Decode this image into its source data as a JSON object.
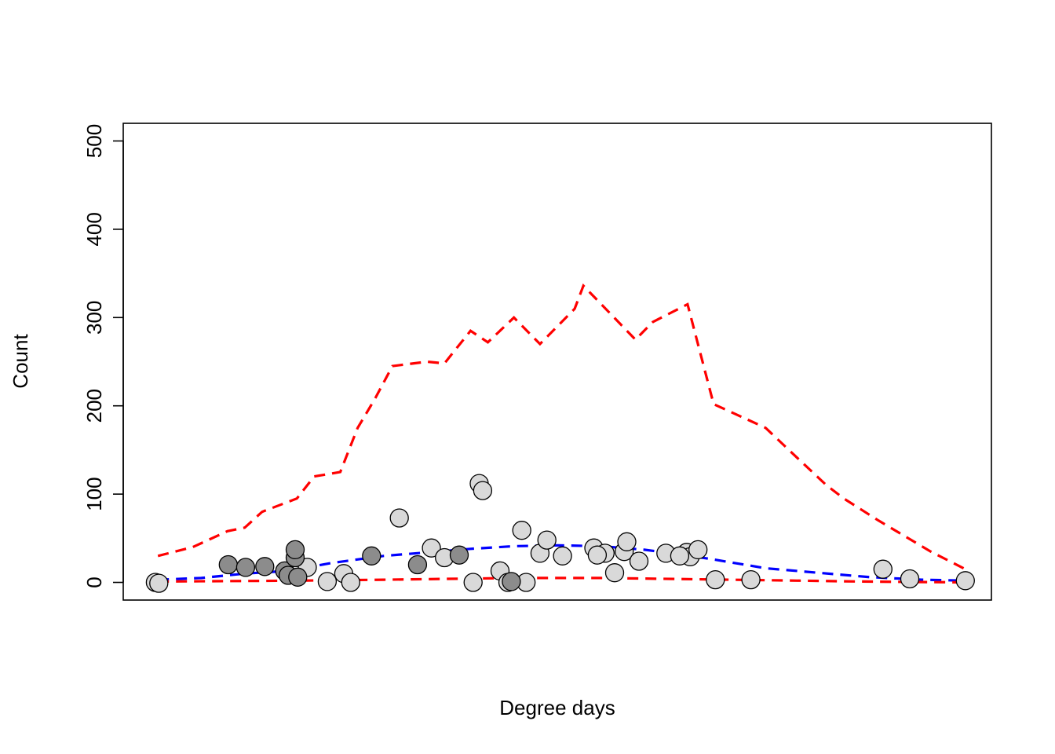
{
  "chart_data": {
    "type": "scatter",
    "title": "",
    "xlabel": "Degree days",
    "ylabel": "Count",
    "xlim": [
      0,
      1
    ],
    "ylim": [
      -20,
      520
    ],
    "x_ticks_shown": false,
    "y_ticks": [
      0,
      100,
      200,
      300,
      400,
      500
    ],
    "grid": false,
    "legend": "none",
    "colors": {
      "point_light": "#d9d9d9",
      "point_dark": "#8c8c8c",
      "point_border": "#000000",
      "upper_band": "#ff0000",
      "lower_band": "#ff0000",
      "mean_line": "#0000ff"
    },
    "series": [
      {
        "kind": "points",
        "fill": "light",
        "x": [
          0.037,
          0.041,
          0.212,
          0.235,
          0.254,
          0.262,
          0.318,
          0.355,
          0.37,
          0.403,
          0.459,
          0.464,
          0.41,
          0.414,
          0.434,
          0.443,
          0.48,
          0.488,
          0.506,
          0.542,
          0.555,
          0.577,
          0.566,
          0.546,
          0.594,
          0.649,
          0.653,
          0.682,
          0.58,
          0.625,
          0.641,
          0.662,
          0.723,
          0.875,
          0.906,
          0.97
        ],
        "y": [
          0,
          -1,
          17,
          1,
          10,
          0,
          73,
          39,
          28,
          0,
          59,
          0,
          112,
          104,
          13,
          0,
          33,
          48,
          30,
          39,
          33,
          35,
          11,
          31,
          24,
          34,
          29,
          3,
          46,
          33,
          30,
          37,
          3,
          15,
          4,
          2
        ]
      },
      {
        "kind": "points",
        "fill": "dark",
        "x": [
          0.121,
          0.141,
          0.163,
          0.186,
          0.19,
          0.198,
          0.198,
          0.201,
          0.286,
          0.339,
          0.387,
          0.447
        ],
        "y": [
          20,
          17,
          18,
          13,
          8,
          28,
          37,
          6,
          30,
          20,
          31,
          1
        ]
      },
      {
        "kind": "line",
        "name": "",
        "style": "upper",
        "x": [
          0.04,
          0.08,
          0.12,
          0.14,
          0.16,
          0.2,
          0.22,
          0.25,
          0.27,
          0.29,
          0.31,
          0.35,
          0.37,
          0.4,
          0.42,
          0.45,
          0.48,
          0.52,
          0.53,
          0.59,
          0.61,
          0.65,
          0.68,
          0.74,
          0.77,
          0.81,
          0.83,
          0.87,
          0.93,
          0.97
        ],
        "y": [
          30,
          40,
          58,
          62,
          80,
          95,
          120,
          125,
          175,
          208,
          245,
          250,
          248,
          285,
          272,
          300,
          270,
          310,
          336,
          275,
          295,
          315,
          202,
          175,
          147,
          110,
          95,
          70,
          35,
          15
        ]
      },
      {
        "kind": "line",
        "name": "",
        "style": "mean",
        "x": [
          0.04,
          0.09,
          0.14,
          0.19,
          0.24,
          0.3,
          0.35,
          0.4,
          0.45,
          0.5,
          0.55,
          0.6,
          0.64,
          0.68,
          0.74,
          0.8,
          0.86,
          0.92,
          0.97
        ],
        "y": [
          3,
          5,
          10,
          13,
          22,
          30,
          34,
          38,
          41,
          42,
          41,
          37,
          32,
          26,
          16,
          11,
          6,
          3,
          2
        ]
      },
      {
        "kind": "line",
        "name": "",
        "style": "lower",
        "x": [
          0.04,
          0.2,
          0.3,
          0.45,
          0.55,
          0.7,
          0.85,
          0.97
        ],
        "y": [
          1,
          2,
          3,
          5,
          5,
          3,
          1,
          0
        ]
      }
    ]
  }
}
